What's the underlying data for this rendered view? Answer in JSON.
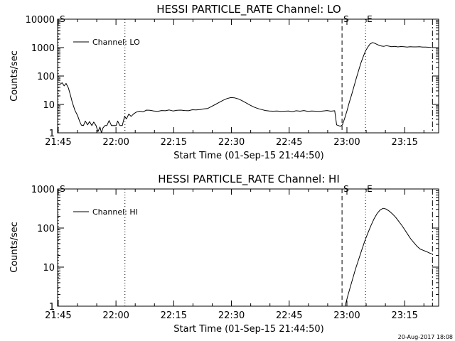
{
  "footer": {
    "timestamp": "20-Aug-2017 18:08"
  },
  "chart_data": [
    {
      "type": "line",
      "title": "HESSI PARTICLE_RATE Channel: LO",
      "xlabel": "Start Time (01-Sep-15 21:44:50)",
      "ylabel": "Counts/sec",
      "x_unit": "minutes after 21:44:50",
      "xlim": [
        0,
        99
      ],
      "x_ticks": [
        {
          "x": 0.17,
          "label": "21:45"
        },
        {
          "x": 15.17,
          "label": "22:00"
        },
        {
          "x": 30.17,
          "label": "22:15"
        },
        {
          "x": 45.17,
          "label": "22:30"
        },
        {
          "x": 60.17,
          "label": "22:45"
        },
        {
          "x": 75.17,
          "label": "23:00"
        },
        {
          "x": 90.17,
          "label": "23:15"
        }
      ],
      "y_scale": "log",
      "ylim": [
        1,
        10000
      ],
      "y_ticks": [
        {
          "y": 1,
          "label": "1"
        },
        {
          "y": 10,
          "label": "10"
        },
        {
          "y": 100,
          "label": "100"
        },
        {
          "y": 1000,
          "label": "1000"
        },
        {
          "y": 10000,
          "label": "10000"
        }
      ],
      "markers": [
        {
          "x": 0.2,
          "style": "dotted",
          "label": "S"
        },
        {
          "x": 17.5,
          "style": "dotted",
          "label": ""
        },
        {
          "x": 73.9,
          "style": "dashed",
          "label": "S"
        },
        {
          "x": 80.0,
          "style": "dotted",
          "label": "E"
        },
        {
          "x": 97.4,
          "style": "dashdot",
          "label": ""
        }
      ],
      "legend": {
        "position": "top-left",
        "entries": [
          "Channel: LO"
        ]
      },
      "series": [
        {
          "name": "Channel: LO",
          "x": [
            0.5,
            1.2,
            1.7,
            2.2,
            2.8,
            3.3,
            3.8,
            4.5,
            5.2,
            5.8,
            6.2,
            6.7,
            7.2,
            7.8,
            8.3,
            8.9,
            9.4,
            10.0,
            10.5,
            11.0,
            11.4,
            11.8,
            12.3,
            12.8,
            13.4,
            14.0,
            14.6,
            15.2,
            15.6,
            16.2,
            16.8,
            17.4,
            17.9,
            18.5,
            19.1,
            19.8,
            20.5,
            21.3,
            22.2,
            23.1,
            24.0,
            25.0,
            26.0,
            27.0,
            28.0,
            29.0,
            30.0,
            31.0,
            32.0,
            33.0,
            34.0,
            35.0,
            36.0,
            37.0,
            38.0,
            39.0,
            40.0,
            41.0,
            42.0,
            43.0,
            44.0,
            45.0,
            46.0,
            47.0,
            48.0,
            49.0,
            50.0,
            51.0,
            52.0,
            53.0,
            54.0,
            55.0,
            56.0,
            57.0,
            58.0,
            59.0,
            60.0,
            61.0,
            62.0,
            63.0,
            64.0,
            65.0,
            66.0,
            67.0,
            68.0,
            69.0,
            70.0,
            71.0,
            72.0,
            72.5,
            73.0,
            73.5,
            74.0,
            74.6,
            75.2,
            75.8,
            76.4,
            77.0,
            77.6,
            78.2,
            78.8,
            79.4,
            80.0,
            80.6,
            81.2,
            81.8,
            82.4,
            83.0,
            83.6,
            84.2,
            84.8,
            85.4,
            86.0,
            86.8,
            87.6,
            88.4,
            89.2,
            90.0,
            90.8,
            91.6,
            92.4,
            93.2,
            94.0,
            94.8,
            95.6,
            96.4,
            97.2
          ],
          "y": [
            50,
            58,
            45,
            55,
            38,
            22,
            12,
            6.2,
            4.0,
            2.4,
            1.85,
            1.8,
            2.6,
            1.9,
            2.5,
            1.8,
            2.4,
            1.8,
            1.1,
            1.6,
            1.0,
            1.5,
            1.8,
            1.8,
            2.7,
            1.8,
            1.8,
            1.8,
            2.6,
            1.8,
            1.8,
            3.8,
            3.1,
            4.6,
            3.8,
            4.7,
            5.4,
            5.8,
            5.5,
            6.3,
            6.2,
            5.9,
            5.7,
            6.1,
            6.0,
            6.4,
            5.9,
            6.2,
            6.3,
            6.1,
            6.0,
            6.5,
            6.4,
            6.6,
            7.0,
            7.2,
            8.5,
            10.0,
            11.8,
            14.0,
            16.0,
            17.4,
            17.0,
            15.6,
            13.4,
            11.3,
            9.5,
            8.1,
            7.2,
            6.6,
            6.1,
            5.9,
            5.8,
            5.9,
            5.7,
            5.8,
            5.9,
            5.6,
            6.0,
            5.8,
            6.1,
            5.7,
            5.9,
            5.8,
            5.7,
            5.9,
            6.1,
            5.8,
            6.0,
            1.9,
            1.8,
            1.7,
            1.9,
            3.3,
            6.0,
            12.0,
            22.0,
            43.0,
            82.0,
            155,
            285,
            480,
            760,
            1050,
            1350,
            1500,
            1420,
            1290,
            1190,
            1130,
            1110,
            1170,
            1130,
            1080,
            1110,
            1060,
            1090,
            1070,
            1050,
            1080,
            1060,
            1060,
            1070,
            1040,
            1050,
            1030,
            1020
          ]
        }
      ]
    },
    {
      "type": "line",
      "title": "HESSI PARTICLE_RATE Channel: HI",
      "xlabel": "Start Time (01-Sep-15 21:44:50)",
      "ylabel": "Counts/sec",
      "x_unit": "minutes after 21:44:50",
      "xlim": [
        0,
        99
      ],
      "x_ticks": [
        {
          "x": 0.17,
          "label": "21:45"
        },
        {
          "x": 15.17,
          "label": "22:00"
        },
        {
          "x": 30.17,
          "label": "22:15"
        },
        {
          "x": 45.17,
          "label": "22:30"
        },
        {
          "x": 60.17,
          "label": "22:45"
        },
        {
          "x": 75.17,
          "label": "23:00"
        },
        {
          "x": 90.17,
          "label": "23:15"
        }
      ],
      "y_scale": "log",
      "ylim": [
        1,
        1000
      ],
      "y_ticks": [
        {
          "y": 1,
          "label": "1"
        },
        {
          "y": 10,
          "label": "10"
        },
        {
          "y": 100,
          "label": "100"
        },
        {
          "y": 1000,
          "label": "1000"
        }
      ],
      "markers": [
        {
          "x": 0.2,
          "style": "dotted",
          "label": "S"
        },
        {
          "x": 17.5,
          "style": "dotted",
          "label": ""
        },
        {
          "x": 73.9,
          "style": "dashed",
          "label": "S"
        },
        {
          "x": 80.0,
          "style": "dotted",
          "label": "E"
        },
        {
          "x": 97.4,
          "style": "dashdot",
          "label": ""
        }
      ],
      "legend": {
        "position": "top-left",
        "entries": [
          "Channel: HI"
        ]
      },
      "series": [
        {
          "name": "Channel: HI",
          "x": [
            74.7,
            75.3,
            76.0,
            76.7,
            77.4,
            78.2,
            79.0,
            79.8,
            80.6,
            81.4,
            82.2,
            83.0,
            83.8,
            84.6,
            85.4,
            86.2,
            87.0,
            87.8,
            88.6,
            89.4,
            90.2,
            91.0,
            91.8,
            92.6,
            93.4,
            94.2,
            95.0,
            95.8,
            96.6,
            97.2
          ],
          "y": [
            1.0,
            1.7,
            3.0,
            5.2,
            9.0,
            15.5,
            27.0,
            46.0,
            74.0,
            115,
            170,
            235,
            290,
            320,
            305,
            270,
            230,
            190,
            150,
            118,
            90,
            68,
            52,
            42,
            34,
            29,
            27,
            25,
            23,
            22
          ]
        }
      ]
    }
  ]
}
